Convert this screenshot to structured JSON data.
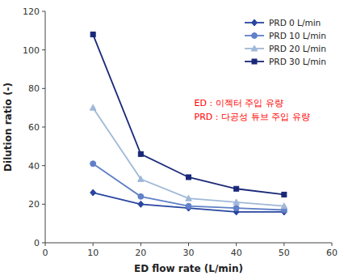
{
  "chart_data": {
    "type": "line",
    "x": [
      10,
      20,
      30,
      40,
      50
    ],
    "series": [
      {
        "name": "PRD 0 L/min",
        "color": "#2845a0",
        "marker": "diamond",
        "line_style": "solid",
        "values": [
          26,
          20,
          18,
          16,
          16
        ]
      },
      {
        "name": "PRD 10 L/min",
        "color": "#6080c8",
        "marker": "circle",
        "line_style": "solid",
        "values": [
          41,
          24,
          19,
          18,
          17
        ]
      },
      {
        "name": "PRD 20 L/min",
        "color": "#a0b8d8",
        "marker": "triangle",
        "line_style": "solid",
        "values": [
          70,
          33,
          23,
          21,
          19
        ]
      },
      {
        "name": "PRD 30 L/min",
        "color": "#1a2878",
        "marker": "square",
        "line_style": "solid",
        "values": [
          108,
          46,
          34,
          28,
          25
        ]
      }
    ],
    "x_label": "ED flow rate (L/min)",
    "y_label": "Dilution ratio (-)",
    "xlim": [
      0,
      60
    ],
    "ylim": [
      0,
      120
    ],
    "xticks": [
      0,
      10,
      20,
      30,
      40,
      50,
      60
    ],
    "yticks": [
      0,
      20,
      40,
      60,
      80,
      100,
      120
    ],
    "annotations": [
      {
        "text": "ED : 이젝터 주입 유량",
        "color": "#ff0000"
      },
      {
        "text": "PRD : 다공성 튜브 주입 유량",
        "color": "#ff0000"
      }
    ],
    "legend": "upper right",
    "grid": false
  }
}
